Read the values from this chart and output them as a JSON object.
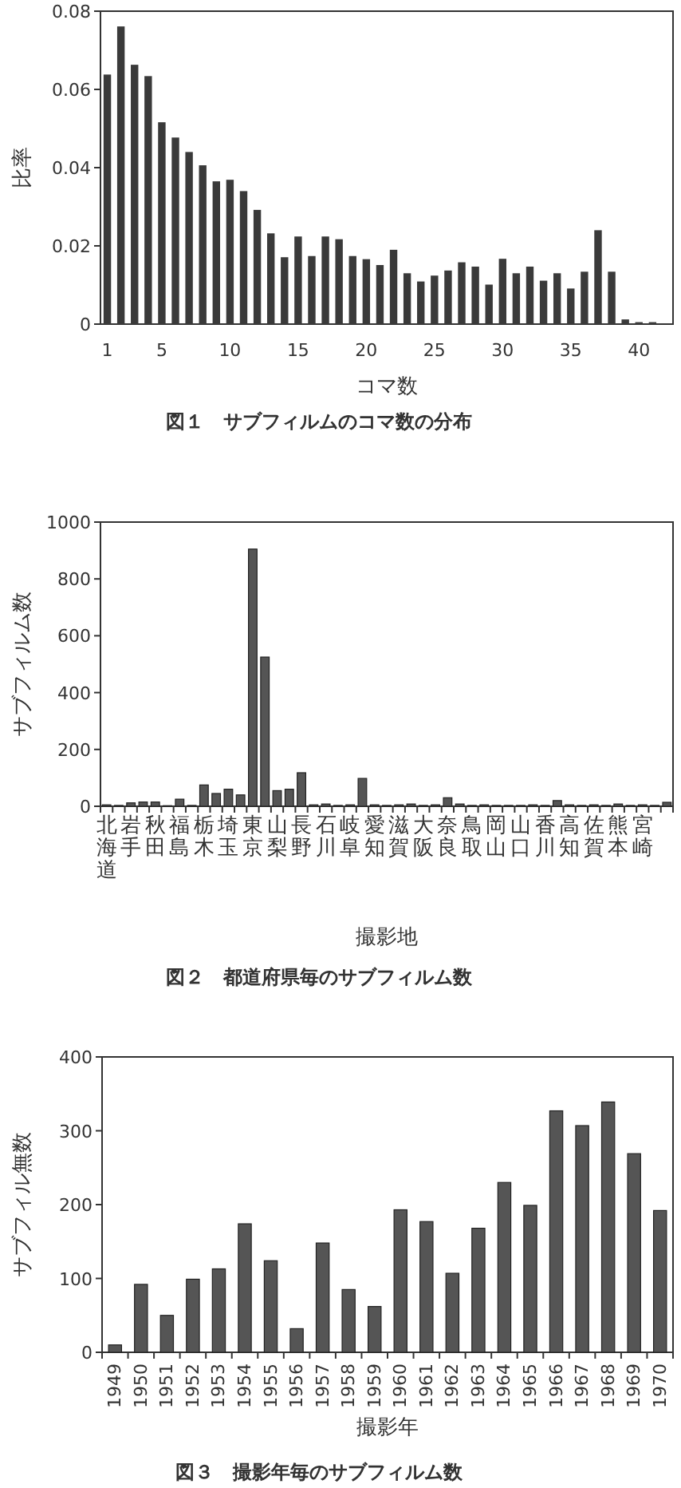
{
  "chart_data": [
    {
      "type": "bar",
      "title": "図１　サブフィルムのコマ数の分布",
      "xlabel": "コマ数",
      "ylabel": "比率",
      "color": "#3a3a3a",
      "x": [
        1,
        2,
        3,
        4,
        5,
        6,
        7,
        8,
        9,
        10,
        11,
        12,
        13,
        14,
        15,
        16,
        17,
        18,
        19,
        20,
        21,
        22,
        23,
        24,
        25,
        26,
        27,
        28,
        29,
        30,
        31,
        32,
        33,
        34,
        35,
        36,
        37,
        38,
        39,
        40,
        41
      ],
      "values": [
        0.0638,
        0.0761,
        0.0663,
        0.0634,
        0.0516,
        0.0477,
        0.044,
        0.0406,
        0.0365,
        0.0369,
        0.034,
        0.0292,
        0.0232,
        0.0171,
        0.0224,
        0.0174,
        0.0224,
        0.0217,
        0.0174,
        0.0166,
        0.0151,
        0.019,
        0.013,
        0.0109,
        0.0124,
        0.0137,
        0.0158,
        0.0147,
        0.0101,
        0.0167,
        0.013,
        0.0147,
        0.0111,
        0.013,
        0.0091,
        0.0134,
        0.024,
        0.0134,
        0.0012,
        0.0005,
        0.0005
      ],
      "xlim": [
        0.5,
        42.5
      ],
      "xticks": [
        1,
        5,
        10,
        15,
        20,
        25,
        30,
        35,
        40
      ],
      "ylim": [
        0,
        0.08
      ],
      "yticks": [
        0,
        0.02,
        0.04,
        0.06,
        0.08
      ]
    },
    {
      "type": "bar",
      "title": "図２　都道府県毎のサブフィルム数",
      "xlabel": "撮影地",
      "ylabel": "サブフィルム数",
      "color": "#555555",
      "categories": [
        "北海道",
        null,
        "岩手",
        null,
        "秋田",
        null,
        "福島",
        null,
        "栃木",
        null,
        "埼玉",
        null,
        "東京",
        null,
        "山梨",
        null,
        "長野",
        null,
        "石川",
        null,
        "岐阜",
        null,
        "愛知",
        null,
        "滋賀",
        null,
        "大阪",
        null,
        "奈良",
        null,
        "鳥取",
        null,
        "岡山",
        null,
        "山口",
        null,
        "香川",
        null,
        "高知",
        null,
        "佐賀",
        null,
        "熊本",
        null,
        "宮崎",
        null,
        null
      ],
      "values": [
        5,
        3,
        12,
        15,
        15,
        2,
        25,
        3,
        75,
        45,
        60,
        40,
        905,
        525,
        55,
        60,
        118,
        5,
        8,
        3,
        5,
        98,
        5,
        3,
        5,
        8,
        3,
        5,
        30,
        8,
        3,
        5,
        3,
        3,
        3,
        5,
        3,
        20,
        5,
        3,
        5,
        3,
        8,
        3,
        5,
        3,
        14
      ],
      "ylim": [
        0,
        1000
      ],
      "yticks": [
        0,
        200,
        400,
        600,
        800,
        1000
      ]
    },
    {
      "type": "bar",
      "title": "図３　撮影年毎のサブフィルム数",
      "xlabel": "撮影年",
      "ylabel": "サブフィル無数",
      "color": "#555555",
      "categories": [
        "1949",
        "1950",
        "1951",
        "1952",
        "1953",
        "1954",
        "1955",
        "1956",
        "1957",
        "1958",
        "1959",
        "1960",
        "1961",
        "1962",
        "1963",
        "1964",
        "1965",
        "1966",
        "1967",
        "1968",
        "1969",
        "1970"
      ],
      "values": [
        10,
        92,
        50,
        99,
        113,
        174,
        124,
        32,
        148,
        85,
        62,
        193,
        177,
        107,
        168,
        230,
        199,
        327,
        307,
        339,
        269,
        192
      ],
      "ylim": [
        0,
        400
      ],
      "yticks": [
        0,
        100,
        200,
        300,
        400
      ]
    }
  ]
}
